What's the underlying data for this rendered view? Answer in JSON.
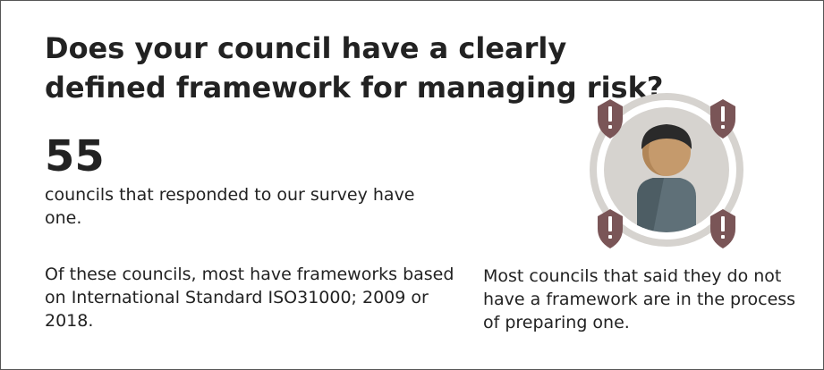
{
  "headline": "Does your council have a clearly defined framework for managing risk?",
  "stat": {
    "value": "55",
    "caption": "councils that responded to our survey have one."
  },
  "detail": "Of these councils, most have frameworks based on International Standard ISO31000; 2009 or 2018.",
  "side_note": "Most councils that said they do not have a framework are in the process of preparing one.",
  "illustration": {
    "icon": "person-with-risk-shields",
    "shield_glyph": "!",
    "colors": {
      "shield": "#7a5557",
      "ring": "#d6d3cf",
      "face": "#c59a6c",
      "hair": "#2a2a2a",
      "body": "#5f7078"
    }
  }
}
